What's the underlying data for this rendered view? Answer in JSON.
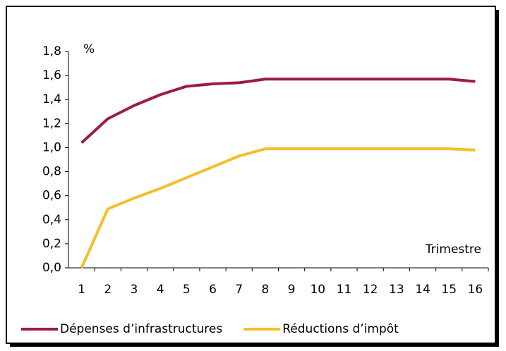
{
  "chart_data": {
    "type": "line",
    "y_label": "%",
    "x_label": "Trimestre",
    "categories": [
      "1",
      "2",
      "3",
      "4",
      "5",
      "6",
      "7",
      "8",
      "9",
      "10",
      "11",
      "12",
      "13",
      "14",
      "15",
      "16"
    ],
    "series": [
      {
        "name": "Dépenses d’infrastructures",
        "color": "#9e1b47",
        "values": [
          1.04,
          1.24,
          1.35,
          1.44,
          1.51,
          1.53,
          1.54,
          1.57,
          1.57,
          1.57,
          1.57,
          1.57,
          1.57,
          1.57,
          1.57,
          1.55
        ]
      },
      {
        "name": "Réductions d’impôt",
        "color": "#f7bd2b",
        "values": [
          0,
          0.49,
          0.58,
          0.66,
          0.75,
          0.84,
          0.93,
          0.99,
          0.99,
          0.99,
          0.99,
          0.99,
          0.99,
          0.99,
          0.99,
          0.98
        ]
      }
    ],
    "ylim": [
      0,
      1.8
    ],
    "yticks": [
      {
        "value": 0,
        "label": "0,0"
      },
      {
        "value": 0.2,
        "label": "0,2"
      },
      {
        "value": 0.4,
        "label": "0,4"
      },
      {
        "value": 0.6,
        "label": "0,6"
      },
      {
        "value": 0.8,
        "label": "0,8"
      },
      {
        "value": 1.0,
        "label": "1,0"
      },
      {
        "value": 1.2,
        "label": "1,2"
      },
      {
        "value": 1.4,
        "label": "1,4"
      },
      {
        "value": 1.6,
        "label": "1,6"
      },
      {
        "value": 1.8,
        "label": "1,8"
      }
    ],
    "legend": "bottom"
  }
}
